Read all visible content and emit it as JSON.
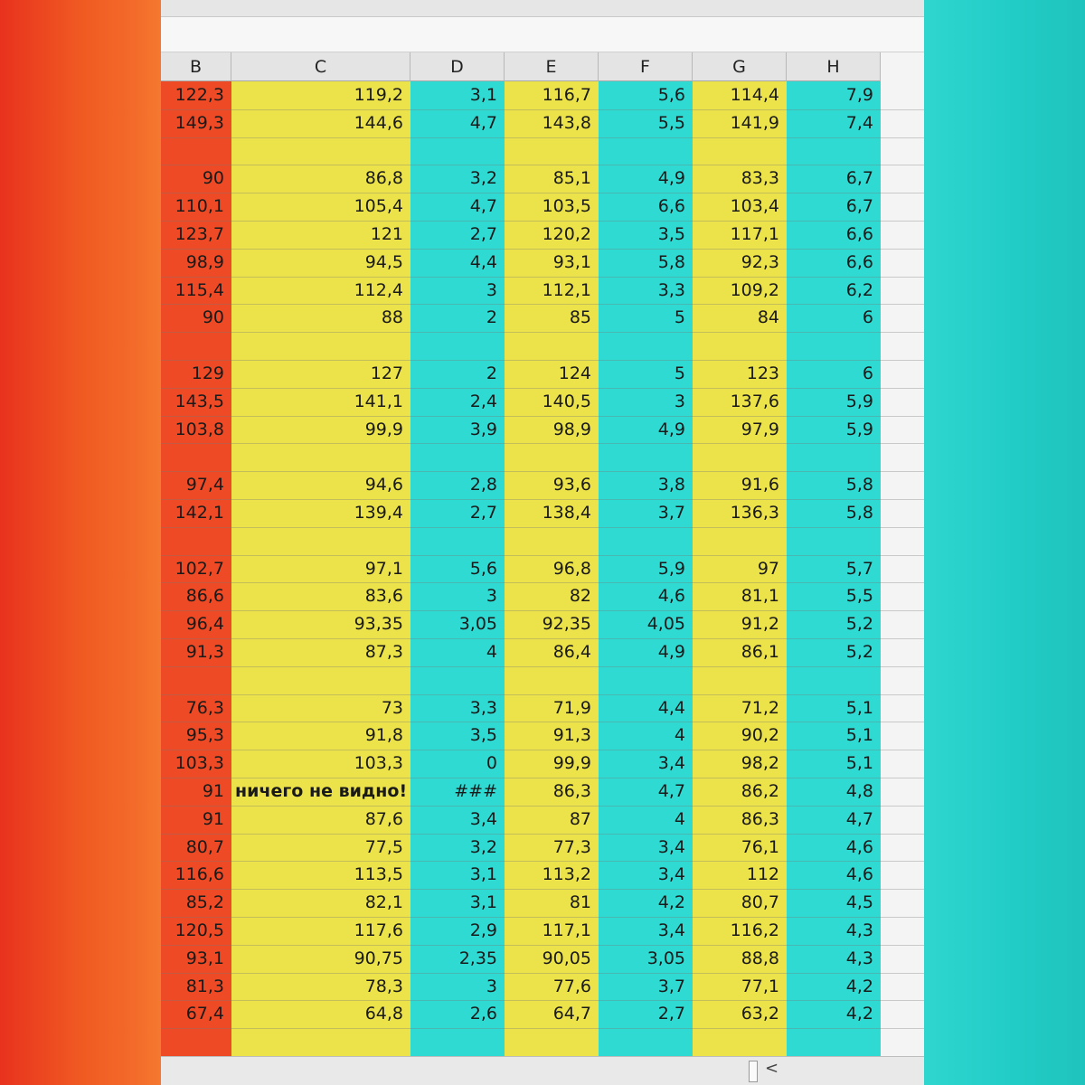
{
  "columns": [
    "B",
    "C",
    "D",
    "E",
    "F",
    "G",
    "H"
  ],
  "colors": {
    "B": "#ee4a25",
    "C": "#ece34a",
    "D": "#2fdad2",
    "E": "#ece34a",
    "F": "#2fdad2",
    "G": "#ece34a",
    "H": "#2fdad2"
  },
  "rows": [
    {
      "B": "122,3",
      "C": "119,2",
      "D": "3,1",
      "E": "116,7",
      "F": "5,6",
      "G": "114,4",
      "H": "7,9"
    },
    {
      "B": "149,3",
      "C": "144,6",
      "D": "4,7",
      "E": "143,8",
      "F": "5,5",
      "G": "141,9",
      "H": "7,4"
    },
    {
      "B": "",
      "C": "",
      "D": "",
      "E": "",
      "F": "",
      "G": "",
      "H": ""
    },
    {
      "B": "90",
      "C": "86,8",
      "D": "3,2",
      "E": "85,1",
      "F": "4,9",
      "G": "83,3",
      "H": "6,7"
    },
    {
      "B": "110,1",
      "C": "105,4",
      "D": "4,7",
      "E": "103,5",
      "F": "6,6",
      "G": "103,4",
      "H": "6,7"
    },
    {
      "B": "123,7",
      "C": "121",
      "D": "2,7",
      "E": "120,2",
      "F": "3,5",
      "G": "117,1",
      "H": "6,6"
    },
    {
      "B": "98,9",
      "C": "94,5",
      "D": "4,4",
      "E": "93,1",
      "F": "5,8",
      "G": "92,3",
      "H": "6,6"
    },
    {
      "B": "115,4",
      "C": "112,4",
      "D": "3",
      "E": "112,1",
      "F": "3,3",
      "G": "109,2",
      "H": "6,2"
    },
    {
      "B": "90",
      "C": "88",
      "D": "2",
      "E": "85",
      "F": "5",
      "G": "84",
      "H": "6"
    },
    {
      "B": "",
      "C": "",
      "D": "",
      "E": "",
      "F": "",
      "G": "",
      "H": ""
    },
    {
      "B": "129",
      "C": "127",
      "D": "2",
      "E": "124",
      "F": "5",
      "G": "123",
      "H": "6"
    },
    {
      "B": "143,5",
      "C": "141,1",
      "D": "2,4",
      "E": "140,5",
      "F": "3",
      "G": "137,6",
      "H": "5,9"
    },
    {
      "B": "103,8",
      "C": "99,9",
      "D": "3,9",
      "E": "98,9",
      "F": "4,9",
      "G": "97,9",
      "H": "5,9"
    },
    {
      "B": "",
      "C": "",
      "D": "",
      "E": "",
      "F": "",
      "G": "",
      "H": ""
    },
    {
      "B": "97,4",
      "C": "94,6",
      "D": "2,8",
      "E": "93,6",
      "F": "3,8",
      "G": "91,6",
      "H": "5,8"
    },
    {
      "B": "142,1",
      "C": "139,4",
      "D": "2,7",
      "E": "138,4",
      "F": "3,7",
      "G": "136,3",
      "H": "5,8"
    },
    {
      "B": "",
      "C": "",
      "D": "",
      "E": "",
      "F": "",
      "G": "",
      "H": ""
    },
    {
      "B": "102,7",
      "C": "97,1",
      "D": "5,6",
      "E": "96,8",
      "F": "5,9",
      "G": "97",
      "H": "5,7"
    },
    {
      "B": "86,6",
      "C": "83,6",
      "D": "3",
      "E": "82",
      "F": "4,6",
      "G": "81,1",
      "H": "5,5"
    },
    {
      "B": "96,4",
      "C": "93,35",
      "D": "3,05",
      "E": "92,35",
      "F": "4,05",
      "G": "91,2",
      "H": "5,2"
    },
    {
      "B": "91,3",
      "C": "87,3",
      "D": "4",
      "E": "86,4",
      "F": "4,9",
      "G": "86,1",
      "H": "5,2"
    },
    {
      "B": "",
      "C": "",
      "D": "",
      "E": "",
      "F": "",
      "G": "",
      "H": ""
    },
    {
      "B": "76,3",
      "C": "73",
      "D": "3,3",
      "E": "71,9",
      "F": "4,4",
      "G": "71,2",
      "H": "5,1"
    },
    {
      "B": "95,3",
      "C": "91,8",
      "D": "3,5",
      "E": "91,3",
      "F": "4",
      "G": "90,2",
      "H": "5,1"
    },
    {
      "B": "103,3",
      "C": "103,3",
      "D": "0",
      "E": "99,9",
      "F": "3,4",
      "G": "98,2",
      "H": "5,1"
    },
    {
      "B": "91",
      "C": "ничего не видно!",
      "D": "###",
      "E": "86,3",
      "F": "4,7",
      "G": "86,2",
      "H": "4,8"
    },
    {
      "B": "91",
      "C": "87,6",
      "D": "3,4",
      "E": "87",
      "F": "4",
      "G": "86,3",
      "H": "4,7"
    },
    {
      "B": "80,7",
      "C": "77,5",
      "D": "3,2",
      "E": "77,3",
      "F": "3,4",
      "G": "76,1",
      "H": "4,6"
    },
    {
      "B": "116,6",
      "C": "113,5",
      "D": "3,1",
      "E": "113,2",
      "F": "3,4",
      "G": "112",
      "H": "4,6"
    },
    {
      "B": "85,2",
      "C": "82,1",
      "D": "3,1",
      "E": "81",
      "F": "4,2",
      "G": "80,7",
      "H": "4,5"
    },
    {
      "B": "120,5",
      "C": "117,6",
      "D": "2,9",
      "E": "117,1",
      "F": "3,4",
      "G": "116,2",
      "H": "4,3"
    },
    {
      "B": "93,1",
      "C": "90,75",
      "D": "2,35",
      "E": "90,05",
      "F": "3,05",
      "G": "88,8",
      "H": "4,3"
    },
    {
      "B": "81,3",
      "C": "78,3",
      "D": "3",
      "E": "77,6",
      "F": "3,7",
      "G": "77,1",
      "H": "4,2"
    },
    {
      "B": "67,4",
      "C": "64,8",
      "D": "2,6",
      "E": "64,7",
      "F": "2,7",
      "G": "63,2",
      "H": "4,2"
    }
  ],
  "scrollbar": {
    "arrow": "<"
  }
}
